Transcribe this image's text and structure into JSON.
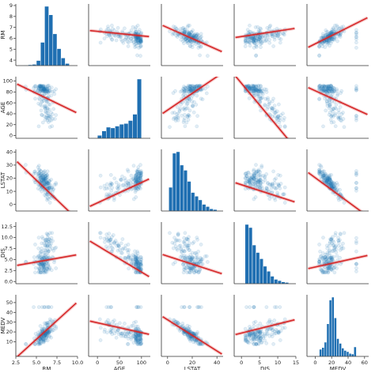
{
  "chart_data": {
    "type": "pairplot",
    "variables": [
      "RM",
      "AGE",
      "LSTAT",
      "DIS",
      "MEDV"
    ],
    "diagonal": "histogram",
    "off_diagonal": "scatter with linear regression line",
    "colors": {
      "points": "#1f77b4",
      "bars": "#1f6fb2",
      "regression": "#d62728"
    },
    "axes": {
      "RM": {
        "range": [
          2.5,
          10.0
        ],
        "ticks": [
          "2.5",
          "5.0",
          "7.5",
          "10.0"
        ],
        "y_ticks": [
          "4",
          "5",
          "6",
          "7",
          "8",
          "9"
        ]
      },
      "AGE": {
        "range": [
          -20,
          120
        ],
        "ticks": [
          "0",
          "50",
          "100"
        ],
        "y_ticks": [
          "0",
          "20",
          "40",
          "60",
          "80",
          "100"
        ]
      },
      "LSTAT": {
        "range": [
          -5,
          45
        ],
        "ticks": [
          "0",
          "20",
          "40"
        ],
        "y_ticks": [
          "0",
          "10",
          "20",
          "30",
          "40"
        ]
      },
      "DIS": {
        "range": [
          -2,
          15
        ],
        "ticks": [
          "0",
          "5",
          "10",
          "15"
        ],
        "y_ticks": [
          "0.0",
          "2.5",
          "5.0",
          "7.5",
          "10.0",
          "12.5"
        ]
      },
      "MEDV": {
        "range": [
          -10,
          65
        ],
        "ticks": [
          "0",
          "20",
          "40",
          "60"
        ],
        "y_ticks": [
          "10",
          "20",
          "30",
          "40",
          "50"
        ]
      }
    },
    "histograms": {
      "RM": {
        "bin_edges": [
          3.5,
          4.0,
          4.5,
          5.0,
          5.5,
          6.0,
          6.5,
          7.0,
          7.5,
          8.0,
          8.5,
          9.0
        ],
        "counts": [
          1,
          2,
          3,
          12,
          55,
          140,
          120,
          75,
          40,
          18,
          5
        ]
      },
      "AGE": {
        "bin_edges": [
          0,
          10,
          20,
          30,
          40,
          50,
          60,
          70,
          80,
          90,
          100
        ],
        "counts": [
          8,
          20,
          30,
          28,
          33,
          38,
          40,
          48,
          65,
          160
        ]
      },
      "LSTAT": {
        "bin_edges": [
          1,
          4,
          7,
          10,
          13,
          16,
          19,
          22,
          25,
          28,
          31,
          34,
          37,
          40
        ],
        "counts": [
          32,
          78,
          80,
          62,
          55,
          40,
          25,
          20,
          15,
          9,
          6,
          3,
          2
        ]
      },
      "DIS": {
        "bin_edges": [
          1,
          2,
          3,
          4,
          5,
          6,
          7,
          8,
          9,
          10,
          11,
          12,
          13
        ],
        "counts": [
          95,
          90,
          62,
          50,
          40,
          28,
          20,
          12,
          7,
          5,
          3,
          2
        ]
      },
      "MEDV": {
        "bin_edges": [
          5,
          8,
          11,
          14,
          17,
          20,
          23,
          26,
          29,
          32,
          35,
          38,
          41,
          44,
          47,
          50
        ],
        "counts": [
          12,
          15,
          24,
          55,
          95,
          100,
          65,
          30,
          22,
          14,
          10,
          8,
          5,
          4,
          16
        ]
      }
    },
    "regressions": [
      {
        "x": "AGE",
        "y": "RM",
        "slope": -0.0055,
        "intercept": 6.67
      },
      {
        "x": "LSTAT",
        "y": "RM",
        "slope": -0.0665,
        "intercept": 7.12
      },
      {
        "x": "DIS",
        "y": "RM",
        "slope": 0.0675,
        "intercept": 6.03
      },
      {
        "x": "MEDV",
        "y": "RM",
        "slope": 0.05,
        "intercept": 5.15
      },
      {
        "x": "RM",
        "y": "AGE",
        "slope": -9.0,
        "intercept": 127
      },
      {
        "x": "LSTAT",
        "y": "AGE",
        "slope": 1.9,
        "intercept": 44
      },
      {
        "x": "DIS",
        "y": "AGE",
        "slope": -9.9,
        "intercept": 105
      },
      {
        "x": "MEDV",
        "y": "AGE",
        "slope": -0.85,
        "intercept": 88
      },
      {
        "x": "RM",
        "y": "LSTAT",
        "slope": -6.4,
        "intercept": 52
      },
      {
        "x": "AGE",
        "y": "LSTAT",
        "slope": 0.165,
        "intercept": 1.6
      },
      {
        "x": "DIS",
        "y": "LSTAT",
        "slope": -0.95,
        "intercept": 16.3
      },
      {
        "x": "MEDV",
        "y": "LSTAT",
        "slope": -0.49,
        "intercept": 22
      },
      {
        "x": "RM",
        "y": "DIS",
        "slope": 0.4,
        "intercept": 2.0
      },
      {
        "x": "AGE",
        "y": "DIS",
        "slope": -0.073,
        "intercept": 8.5
      },
      {
        "x": "LSTAT",
        "y": "DIS",
        "slope": -0.11,
        "intercept": 5.6
      },
      {
        "x": "MEDV",
        "y": "DIS",
        "slope": 0.05,
        "intercept": 2.6
      },
      {
        "x": "RM",
        "y": "MEDV",
        "slope": 9.1,
        "intercept": -34.7
      },
      {
        "x": "AGE",
        "y": "MEDV",
        "slope": -0.12,
        "intercept": 30.9
      },
      {
        "x": "LSTAT",
        "y": "MEDV",
        "slope": -0.95,
        "intercept": 34.6
      },
      {
        "x": "DIS",
        "y": "MEDV",
        "slope": 1.1,
        "intercept": 18.4
      }
    ]
  }
}
